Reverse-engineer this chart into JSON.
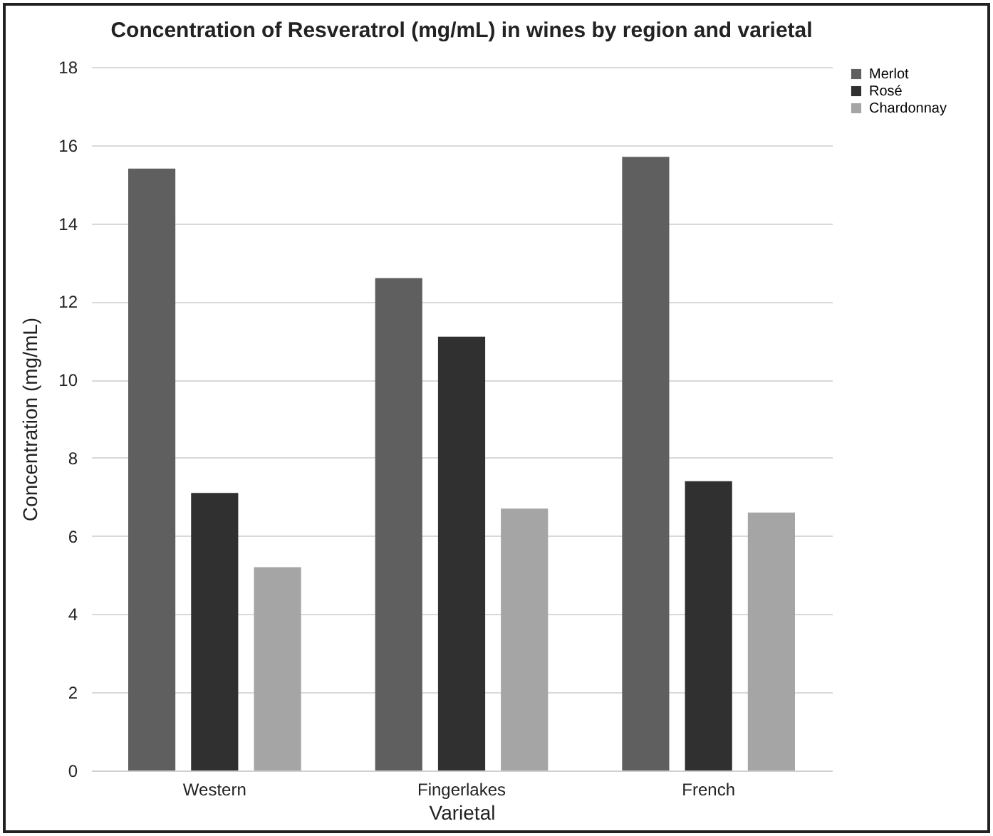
{
  "chart_data": {
    "type": "bar",
    "title": "Concentration of Resveratrol (mg/mL) in wines by region and varietal",
    "xlabel": "Varietal",
    "ylabel": "Concentration (mg/mL)",
    "categories": [
      "Western",
      "Fingerlakes",
      "French"
    ],
    "series": [
      {
        "name": "Merlot",
        "color": "#5f5f5f",
        "values": [
          15.4,
          12.6,
          15.7
        ]
      },
      {
        "name": "Rosé",
        "color": "#303030",
        "values": [
          7.1,
          11.1,
          7.4
        ]
      },
      {
        "name": "Chardonnay",
        "color": "#a5a5a5",
        "values": [
          5.2,
          6.7,
          6.6
        ]
      }
    ],
    "ylim": [
      0,
      18
    ],
    "yticks": [
      0,
      2,
      4,
      6,
      8,
      10,
      12,
      14,
      16,
      18
    ],
    "grid": "y",
    "legend": "right"
  }
}
